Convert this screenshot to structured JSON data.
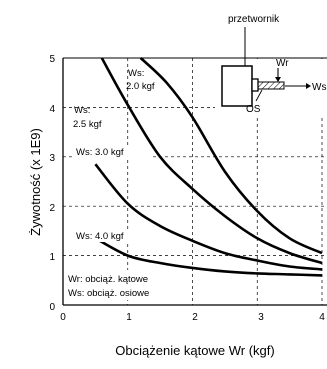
{
  "chart_data": {
    "type": "line",
    "title": "",
    "xlabel": "Obciążenie kątowe Wr (kgf)",
    "ylabel": "Żywotność (x 1E9)",
    "xlim": [
      0,
      4
    ],
    "ylim": [
      0,
      5
    ],
    "x_ticks": [
      "0",
      "1",
      "2",
      "3",
      "4"
    ],
    "y_ticks": [
      "0",
      "1",
      "2",
      "3",
      "4",
      "5"
    ],
    "grid": "major, dashed",
    "series": [
      {
        "name": "Ws: 2.0 kgf",
        "points": [
          [
            1.2,
            5.0
          ],
          [
            1.6,
            4.5
          ],
          [
            2.0,
            3.8
          ],
          [
            2.5,
            2.7
          ],
          [
            3.0,
            1.9
          ],
          [
            3.5,
            1.35
          ],
          [
            4.0,
            1.05
          ]
        ]
      },
      {
        "name": "Ws: 2.5 kgf",
        "points": [
          [
            0.6,
            5.0
          ],
          [
            1.0,
            4.05
          ],
          [
            1.5,
            3.0
          ],
          [
            2.0,
            2.35
          ],
          [
            2.5,
            1.8
          ],
          [
            3.0,
            1.35
          ],
          [
            3.5,
            1.05
          ],
          [
            4.0,
            0.85
          ]
        ]
      },
      {
        "name": "Ws: 3.0 kgf",
        "points": [
          [
            0.5,
            2.85
          ],
          [
            1.0,
            2.05
          ],
          [
            1.5,
            1.6
          ],
          [
            2.0,
            1.3
          ],
          [
            2.5,
            1.05
          ],
          [
            3.0,
            0.9
          ],
          [
            3.5,
            0.78
          ],
          [
            4.0,
            0.72
          ]
        ]
      },
      {
        "name": "Ws: 4.0 kgf",
        "points": [
          [
            0.5,
            1.35
          ],
          [
            1.0,
            1.0
          ],
          [
            1.5,
            0.85
          ],
          [
            2.0,
            0.75
          ],
          [
            2.5,
            0.68
          ],
          [
            3.0,
            0.64
          ],
          [
            3.5,
            0.62
          ],
          [
            4.0,
            0.6
          ]
        ]
      }
    ],
    "series_labels": [
      "Ws:",
      "2.0 kgf",
      "Ws:",
      "2.5 kgf",
      "Ws: 3.0 kgf",
      "Ws: 4.0 kgf"
    ],
    "legend_text": [
      "Wr: obciąż. kątowe",
      "Ws: obciąż. osiowe"
    ],
    "inset": {
      "title": "przetwornik",
      "labels": [
        "Wr",
        "Ws",
        "OS"
      ]
    }
  }
}
